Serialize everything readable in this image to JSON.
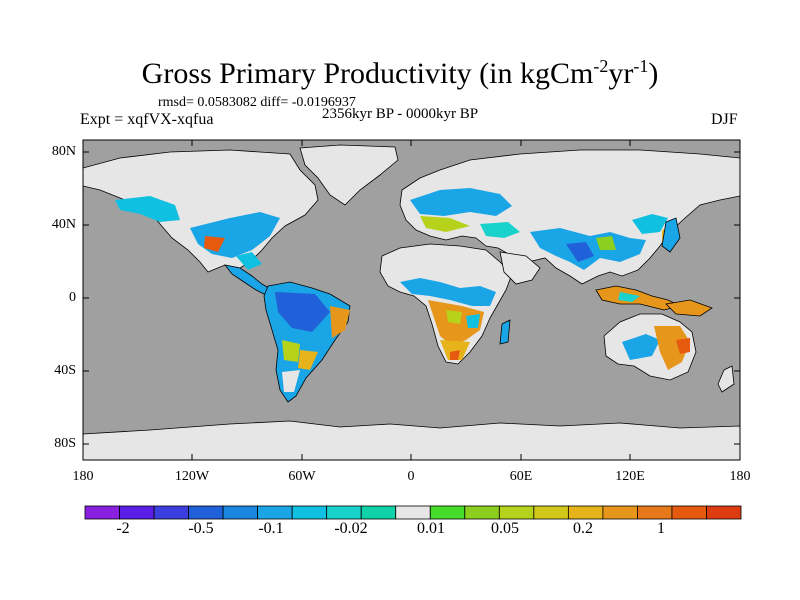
{
  "title": {
    "main": "Gross Primary Productivity (in kgCm",
    "sup1": "-2",
    "mid": "yr",
    "sup2": "-1",
    "end": ")"
  },
  "stats": "rmsd= 0.0583082  diff= -0.0196937",
  "expt": "Expt = xqfVX-xqfua",
  "period": "2356kyr BP - 0000kyr BP",
  "season": "DJF",
  "lat_labels": [
    "80N",
    "40N",
    "0",
    "40S",
    "80S"
  ],
  "lon_labels": [
    "180",
    "120W",
    "60W",
    "0",
    "60E",
    "120E",
    "180"
  ],
  "colorbar": {
    "colors": [
      "#8a1fe0",
      "#5a1fe6",
      "#3b3fe0",
      "#2060d8",
      "#1a86e0",
      "#1aa5e6",
      "#10c0e0",
      "#1ad2cc",
      "#10d2a8",
      "#e6e6e6",
      "#46dc2a",
      "#8ccf1e",
      "#b6d21a",
      "#d2c81a",
      "#e6b41a",
      "#e6961a",
      "#e6781a",
      "#e65a10",
      "#dc3c10"
    ],
    "labels": [
      "-2",
      "-0.5",
      "-0.1",
      "-0.02",
      "0.01",
      "0.05",
      "0.2",
      "1"
    ]
  },
  "legend_colors": {
    "ocean": "#a0a0a0",
    "ice_land": "#e6e6e6",
    "coast": "#000000"
  }
}
